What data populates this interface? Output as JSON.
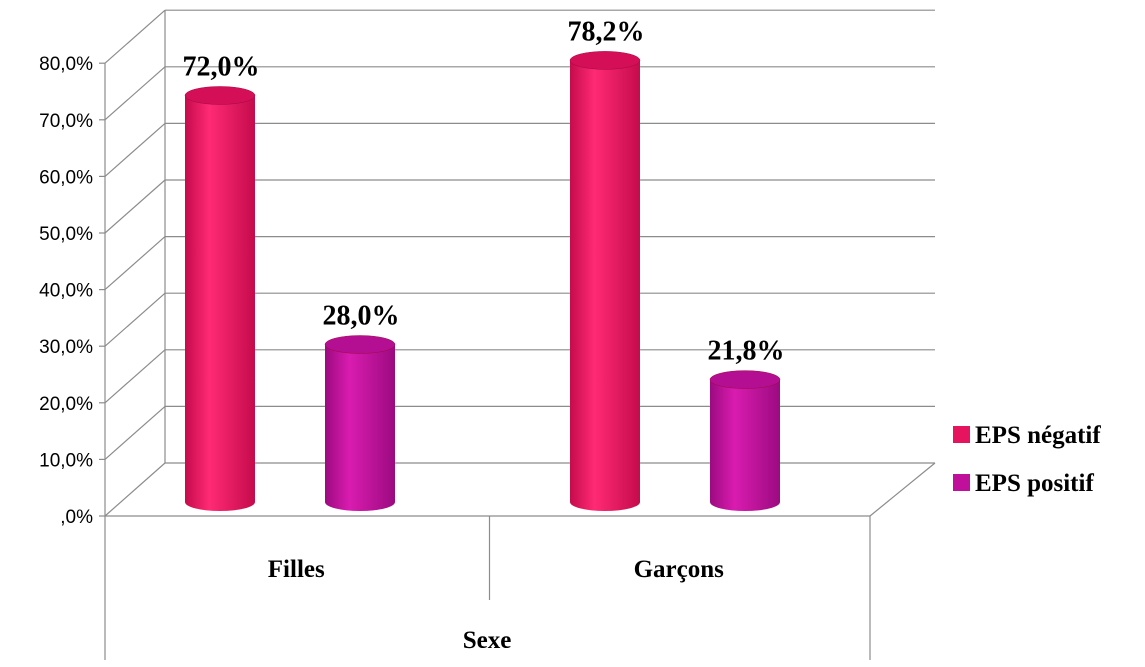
{
  "chart_data": {
    "type": "bar",
    "style": "3d-cylinder",
    "categories": [
      "Filles",
      "Garçons"
    ],
    "xlabel": "Sexe",
    "ylabel": "",
    "ylim": [
      0,
      80
    ],
    "ytick_labels": [
      ",0%",
      "10,0%",
      "20,0%",
      "30,0%",
      "40,0%",
      "50,0%",
      "60,0%",
      "70,0%",
      "80,0%"
    ],
    "grid": true,
    "legend_position": "right",
    "series": [
      {
        "name": "EPS négatif",
        "color": "#e6135e",
        "values": [
          72.0,
          78.2
        ],
        "labels": [
          "72,0%",
          "78,2%"
        ]
      },
      {
        "name": "EPS positif",
        "color": "#c0109b",
        "values": [
          28.0,
          21.8
        ],
        "labels": [
          "28,0%",
          "21,8%"
        ]
      }
    ]
  }
}
